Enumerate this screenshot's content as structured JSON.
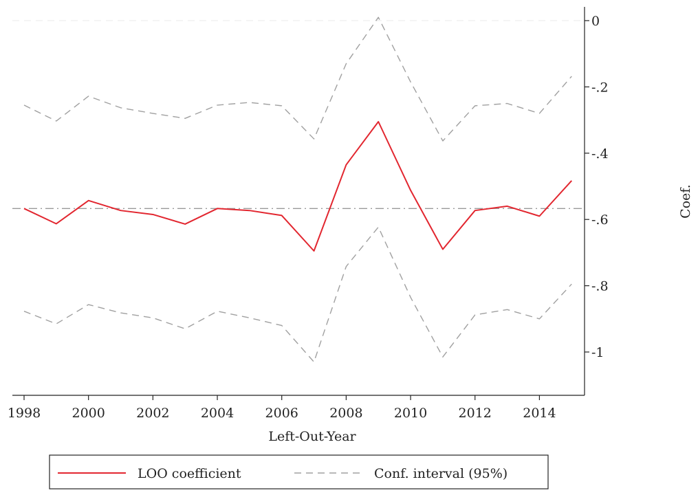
{
  "chart_data": {
    "type": "line",
    "xlabel": "Left-Out-Year",
    "ylabel": "Coef.",
    "xlim": [
      1998,
      2015
    ],
    "ylim": [
      -1.13,
      0.02
    ],
    "y_axis_side": "right",
    "x_ticks": [
      "1998",
      "2000",
      "2002",
      "2004",
      "2006",
      "2008",
      "2010",
      "2012",
      "2014"
    ],
    "x_tick_values": [
      1998,
      2000,
      2002,
      2004,
      2006,
      2008,
      2010,
      2012,
      2014
    ],
    "y_ticks": [
      "0",
      "-.2",
      "-.4",
      "-.6",
      "-.8",
      "-1"
    ],
    "y_tick_values": [
      0,
      -0.2,
      -0.4,
      -0.6,
      -0.8,
      -1
    ],
    "x": [
      1998,
      1999,
      2000,
      2001,
      2002,
      2003,
      2004,
      2005,
      2006,
      2007,
      2008,
      2009,
      2010,
      2011,
      2012,
      2013,
      2014,
      2015
    ],
    "series": [
      {
        "name": "LOO coefficient",
        "color": "#e2262f",
        "style": "solid",
        "values": [
          -0.567,
          -0.613,
          -0.543,
          -0.573,
          -0.585,
          -0.614,
          -0.567,
          -0.573,
          -0.588,
          -0.695,
          -0.435,
          -0.305,
          -0.512,
          -0.69,
          -0.573,
          -0.56,
          -0.59,
          -0.483
        ]
      },
      {
        "name": "Conf. interval (95%)",
        "color": "#a0a0a0",
        "style": "dashed",
        "values": [
          -0.255,
          -0.303,
          -0.228,
          -0.263,
          -0.28,
          -0.295,
          -0.255,
          -0.247,
          -0.257,
          -0.357,
          -0.13,
          0.01,
          -0.185,
          -0.363,
          -0.257,
          -0.25,
          -0.28,
          -0.168
        ]
      },
      {
        "name": "",
        "color": "#a0a0a0",
        "style": "dashed",
        "values": [
          -0.877,
          -0.915,
          -0.857,
          -0.882,
          -0.897,
          -0.93,
          -0.877,
          -0.897,
          -0.92,
          -1.03,
          -0.742,
          -0.623,
          -0.835,
          -1.015,
          -0.888,
          -0.872,
          -0.9,
          -0.795
        ]
      }
    ],
    "reference_lines": [
      {
        "y": -0.567,
        "color": "#999999",
        "style": "dash-dot"
      },
      {
        "y": 0,
        "color": "#eeeeee",
        "style": "dashed"
      }
    ],
    "legend": {
      "placement": "bottom",
      "entries": [
        {
          "label": "LOO coefficient",
          "color": "#e2262f",
          "style": "solid"
        },
        {
          "label": "Conf. interval (95%)",
          "color": "#a0a0a0",
          "style": "dashed"
        }
      ]
    },
    "grid": false
  }
}
